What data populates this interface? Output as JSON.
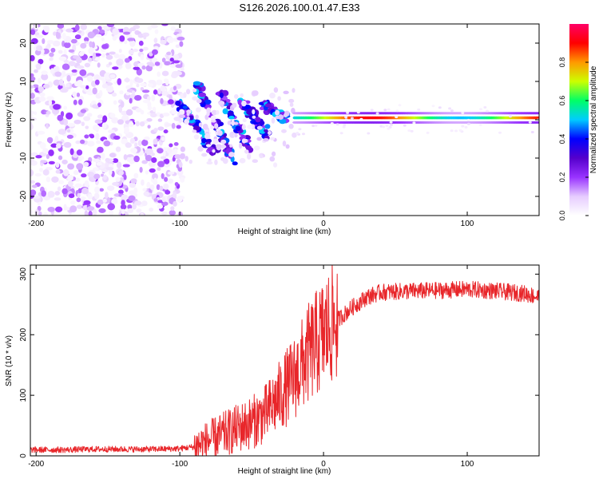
{
  "title": "S126.2026.100.01.47.E33",
  "chart_data": [
    {
      "type": "heatmap",
      "name": "spectrogram",
      "xlabel": "Height of straight line (km)",
      "ylabel": "Frequency (Hz)",
      "xlim": [
        -204,
        150
      ],
      "ylim": [
        -25,
        25
      ],
      "x_ticks": [
        -200,
        -100,
        0,
        100
      ],
      "y_ticks": [
        -20,
        -10,
        0,
        10,
        20
      ],
      "colorbar": {
        "label": "Normalized spectral amplitude",
        "range": [
          0,
          1
        ],
        "ticks": [
          0.0,
          0.2,
          0.4,
          0.6,
          0.8
        ],
        "tick_labels": [
          "0.0",
          "0.2",
          "0.4",
          "0.6",
          "0.8"
        ],
        "colormap": [
          "#ffffff",
          "#e6ccff",
          "#9933ff",
          "#5500cc",
          "#0000ff",
          "#00ccff",
          "#00ff66",
          "#ccff00",
          "#ff9900",
          "#ff0000",
          "#ff0066"
        ]
      },
      "regions": [
        {
          "description": "diffuse noise",
          "x_range": [
            -204,
            -98
          ],
          "freq_range": [
            -25,
            25
          ],
          "amplitude": 0.15
        },
        {
          "description": "diagonal striations",
          "x_range": [
            -100,
            -20
          ],
          "freq_range": [
            -12,
            8
          ],
          "amplitude": 0.3
        },
        {
          "description": "carrier line",
          "x_range": [
            -20,
            150
          ],
          "freq": 0.5,
          "amplitude": 0.9
        }
      ]
    },
    {
      "type": "line",
      "name": "snr",
      "xlabel": "Height of straight line (km)",
      "ylabel": "SNR (10 * v/v)",
      "xlim": [
        -204,
        150
      ],
      "ylim": [
        0,
        315
      ],
      "x_ticks": [
        -200,
        -100,
        0,
        100
      ],
      "y_ticks": [
        0,
        100,
        200,
        300
      ],
      "color": "#e8262a",
      "series": [
        {
          "name": "SNR",
          "x": [
            -204,
            -180,
            -160,
            -140,
            -120,
            -100,
            -90,
            -80,
            -70,
            -60,
            -50,
            -40,
            -30,
            -20,
            -15,
            -10,
            -5,
            0,
            5,
            10,
            20,
            30,
            40,
            60,
            80,
            100,
            120,
            140,
            150
          ],
          "y": [
            10,
            10,
            11,
            11,
            11,
            12,
            15,
            25,
            35,
            45,
            55,
            70,
            100,
            130,
            150,
            170,
            185,
            200,
            215,
            225,
            245,
            262,
            270,
            272,
            273,
            275,
            272,
            268,
            262
          ]
        }
      ]
    }
  ]
}
